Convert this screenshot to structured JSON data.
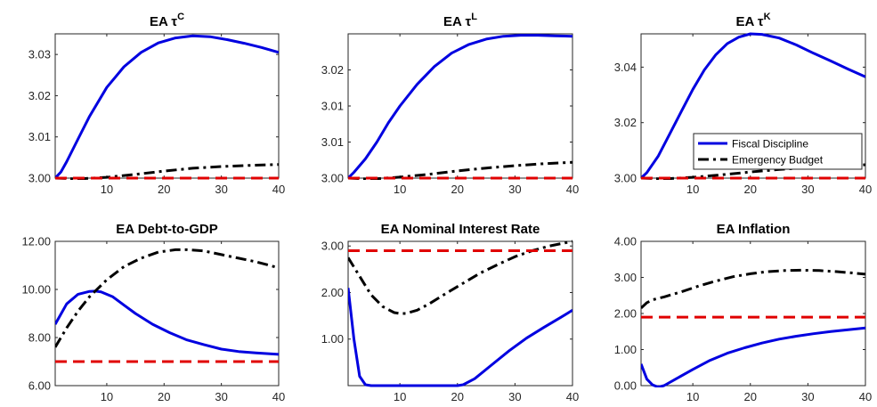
{
  "chart_data": [
    {
      "type": "line",
      "title": "EA τ",
      "title_sup": "C",
      "xlim": [
        1,
        40
      ],
      "ylim": [
        3.0,
        3.035
      ],
      "xticks": [
        10,
        20,
        30,
        40
      ],
      "yticks": [
        3.0,
        3.01,
        3.02,
        3.03
      ],
      "ytick_labels": [
        "3.00",
        "3.01",
        "3.02",
        "3.03"
      ],
      "series": [
        {
          "key": "fiscal",
          "color": "#0000e0",
          "style": "solid",
          "x": [
            1,
            2,
            3,
            5,
            7,
            10,
            13,
            16,
            19,
            22,
            25,
            28,
            31,
            34,
            37,
            40
          ],
          "y": [
            3.0,
            3.0015,
            3.004,
            3.0095,
            3.015,
            3.022,
            3.027,
            3.0305,
            3.0328,
            3.034,
            3.0345,
            3.0343,
            3.0336,
            3.0327,
            3.0317,
            3.0305
          ]
        },
        {
          "key": "emergency",
          "color": "#000000",
          "style": "dashdot",
          "x": [
            1,
            5,
            10,
            15,
            20,
            25,
            30,
            35,
            40
          ],
          "y": [
            3.0,
            2.9998,
            3.0002,
            3.0009,
            3.0017,
            3.0024,
            3.0028,
            3.0031,
            3.0033
          ]
        },
        {
          "key": "baseline",
          "color": "#e00000",
          "style": "dashed",
          "x": [
            1,
            40
          ],
          "y": [
            3.0,
            3.0
          ]
        }
      ]
    },
    {
      "type": "line",
      "title": "EA τ",
      "title_sup": "L",
      "xlim": [
        1,
        40
      ],
      "ylim": [
        3.0,
        3.03
      ],
      "xticks": [
        10,
        20,
        30,
        40
      ],
      "yticks": [
        3.0,
        3.0075,
        3.015,
        3.0225
      ],
      "ytick_labels": [
        "3.00",
        "3.01",
        "3.01",
        "3.02"
      ],
      "series": [
        {
          "key": "fiscal",
          "color": "#0000e0",
          "style": "solid",
          "x": [
            1,
            2,
            4,
            6,
            8,
            10,
            13,
            16,
            19,
            22,
            25,
            28,
            31,
            34,
            37,
            40
          ],
          "y": [
            3.0,
            3.0012,
            3.004,
            3.0075,
            3.0115,
            3.015,
            3.0195,
            3.0232,
            3.026,
            3.0278,
            3.0289,
            3.0295,
            3.0297,
            3.0297,
            3.0296,
            3.0295
          ]
        },
        {
          "key": "emergency",
          "color": "#000000",
          "style": "dashdot",
          "x": [
            1,
            5,
            10,
            15,
            20,
            25,
            30,
            35,
            40
          ],
          "y": [
            3.0,
            2.9998,
            3.0002,
            3.0008,
            3.0015,
            3.0021,
            3.0026,
            3.003,
            3.0033
          ]
        },
        {
          "key": "baseline",
          "color": "#e00000",
          "style": "dashed",
          "x": [
            1,
            40
          ],
          "y": [
            3.0,
            3.0
          ]
        }
      ]
    },
    {
      "type": "line",
      "title": "EA τ",
      "title_sup": "K",
      "xlim": [
        1,
        40
      ],
      "ylim": [
        3.0,
        3.052
      ],
      "xticks": [
        10,
        20,
        30,
        40
      ],
      "yticks": [
        3.0,
        3.02,
        3.04
      ],
      "ytick_labels": [
        "3.00",
        "3.02",
        "3.04"
      ],
      "legend": {
        "position": "lower-right",
        "entries": [
          "Fiscal Discipline",
          "Emergency Budget"
        ]
      },
      "series": [
        {
          "key": "fiscal",
          "color": "#0000e0",
          "style": "solid",
          "x": [
            1,
            2,
            4,
            6,
            8,
            10,
            12,
            14,
            16,
            18,
            20,
            22,
            25,
            28,
            31,
            34,
            37,
            40
          ],
          "y": [
            3.0,
            3.002,
            3.008,
            3.016,
            3.024,
            3.032,
            3.039,
            3.0445,
            3.0485,
            3.0508,
            3.052,
            3.0518,
            3.0505,
            3.048,
            3.045,
            3.0422,
            3.0393,
            3.0365
          ]
        },
        {
          "key": "emergency",
          "color": "#000000",
          "style": "dashdot",
          "x": [
            1,
            5,
            10,
            15,
            20,
            25,
            30,
            35,
            40
          ],
          "y": [
            3.0,
            2.9997,
            3.0003,
            3.0012,
            3.0022,
            3.0031,
            3.0038,
            3.0044,
            3.0048
          ]
        },
        {
          "key": "baseline",
          "color": "#e00000",
          "style": "dashed",
          "x": [
            1,
            40
          ],
          "y": [
            3.0,
            3.0
          ]
        }
      ]
    },
    {
      "type": "line",
      "title": "EA Debt-to-GDP",
      "xlim": [
        1,
        40
      ],
      "ylim": [
        6.0,
        12.0
      ],
      "xticks": [
        10,
        20,
        30,
        40
      ],
      "yticks": [
        6.0,
        8.0,
        10.0,
        12.0
      ],
      "ytick_labels": [
        "6.00",
        "8.00",
        "10.00",
        "12.00"
      ],
      "series": [
        {
          "key": "fiscal",
          "color": "#0000e0",
          "style": "solid",
          "x": [
            1,
            3,
            5,
            7,
            8,
            9,
            11,
            13,
            15,
            18,
            21,
            24,
            27,
            30,
            33,
            36,
            40
          ],
          "y": [
            8.55,
            9.4,
            9.8,
            9.92,
            9.93,
            9.9,
            9.7,
            9.35,
            9.0,
            8.55,
            8.2,
            7.9,
            7.7,
            7.52,
            7.42,
            7.36,
            7.3
          ]
        },
        {
          "key": "emergency",
          "color": "#000000",
          "style": "dashdot",
          "x": [
            1,
            3,
            5,
            7,
            10,
            13,
            16,
            19,
            22,
            24,
            27,
            30,
            33,
            36,
            40
          ],
          "y": [
            7.6,
            8.4,
            9.1,
            9.7,
            10.4,
            10.95,
            11.3,
            11.55,
            11.65,
            11.65,
            11.6,
            11.45,
            11.3,
            11.15,
            10.9
          ]
        },
        {
          "key": "baseline",
          "color": "#e00000",
          "style": "dashed",
          "x": [
            1,
            40
          ],
          "y": [
            7.0,
            7.0
          ]
        }
      ]
    },
    {
      "type": "line",
      "title": "EA Nominal Interest Rate",
      "xlim": [
        1,
        40
      ],
      "ylim": [
        0.0,
        3.1
      ],
      "xticks": [
        10,
        20,
        30,
        40
      ],
      "yticks": [
        1.0,
        2.0,
        3.0
      ],
      "ytick_labels": [
        "1.00",
        "2.00",
        "3.00"
      ],
      "series": [
        {
          "key": "fiscal",
          "color": "#0000e0",
          "style": "solid",
          "x": [
            1,
            2,
            3,
            4,
            5,
            8,
            12,
            16,
            20,
            21,
            23,
            26,
            29,
            32,
            35,
            38,
            40
          ],
          "y": [
            2.1,
            1.0,
            0.2,
            0.02,
            0.0,
            0.0,
            0.0,
            0.0,
            0.0,
            0.02,
            0.15,
            0.45,
            0.75,
            1.02,
            1.25,
            1.47,
            1.62
          ]
        },
        {
          "key": "emergency",
          "color": "#000000",
          "style": "dashdot",
          "x": [
            1,
            3,
            5,
            7,
            9,
            10,
            11,
            13,
            15,
            18,
            21,
            24,
            27,
            30,
            33,
            36,
            40
          ],
          "y": [
            2.75,
            2.35,
            1.95,
            1.7,
            1.57,
            1.55,
            1.55,
            1.62,
            1.75,
            1.98,
            2.2,
            2.42,
            2.6,
            2.77,
            2.9,
            3.0,
            3.1
          ]
        },
        {
          "key": "baseline",
          "color": "#e00000",
          "style": "dashed",
          "x": [
            1,
            40
          ],
          "y": [
            2.9,
            2.9
          ]
        }
      ]
    },
    {
      "type": "line",
      "title": "EA Inflation",
      "xlim": [
        1,
        40
      ],
      "ylim": [
        0.0,
        4.0
      ],
      "xticks": [
        10,
        20,
        30,
        40
      ],
      "yticks": [
        0.0,
        1.0,
        2.0,
        3.0,
        4.0
      ],
      "ytick_labels": [
        "0.00",
        "1.00",
        "2.00",
        "3.00",
        "4.00"
      ],
      "series": [
        {
          "key": "fiscal",
          "color": "#0000e0",
          "style": "solid",
          "x": [
            1,
            2,
            3,
            4,
            5,
            7,
            10,
            13,
            16,
            19,
            22,
            25,
            28,
            31,
            34,
            37,
            40
          ],
          "y": [
            0.6,
            0.18,
            0.02,
            -0.04,
            0.0,
            0.18,
            0.45,
            0.7,
            0.9,
            1.05,
            1.18,
            1.29,
            1.37,
            1.44,
            1.5,
            1.55,
            1.6
          ]
        },
        {
          "key": "emergency",
          "color": "#000000",
          "style": "dashdot",
          "x": [
            1,
            2,
            3,
            5,
            8,
            11,
            14,
            17,
            20,
            23,
            26,
            29,
            32,
            35,
            38,
            40
          ],
          "y": [
            2.15,
            2.3,
            2.38,
            2.46,
            2.6,
            2.76,
            2.9,
            3.02,
            3.1,
            3.16,
            3.19,
            3.2,
            3.19,
            3.16,
            3.12,
            3.09
          ]
        },
        {
          "key": "baseline",
          "color": "#e00000",
          "style": "dashed",
          "x": [
            1,
            40
          ],
          "y": [
            1.9,
            1.9
          ]
        }
      ]
    }
  ]
}
